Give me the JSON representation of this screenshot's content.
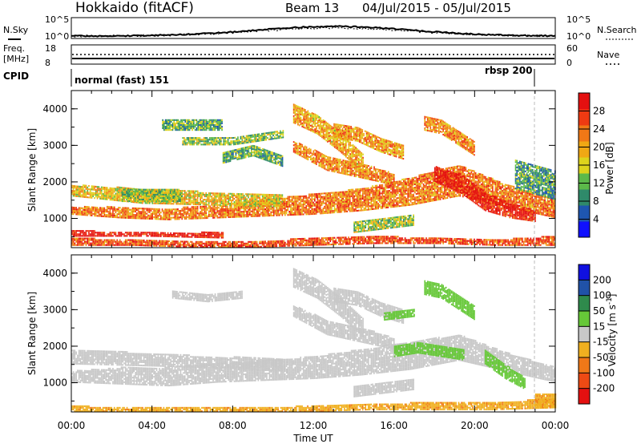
{
  "header": {
    "radar": "Hokkaido (fitACF)",
    "beam": "Beam 13",
    "date_range": "04/Jul/2015 - 05/Jul/2015"
  },
  "noise_panel": {
    "left_label": "N.Sky",
    "left_ticks": [
      "10^5",
      "10^0"
    ],
    "right_label": "N.Search",
    "right_ticks": [
      "10^5",
      "10^0"
    ]
  },
  "freq_panel": {
    "left_label": "Freq.",
    "left_unit": "[MHz]",
    "left_ticks": [
      "18",
      "8"
    ],
    "right_label": "Nave",
    "right_ticks": [
      "60",
      "0"
    ]
  },
  "cpid_panel": {
    "label": "CPID",
    "segments": [
      "normal (fast) 151",
      "rbsp 200"
    ]
  },
  "chart_data": [
    {
      "type": "heatmap",
      "name": "power",
      "xlabel": "",
      "ylabel": "Slant Range [km]",
      "x_ticks": [
        "00:00",
        "04:00",
        "08:00",
        "12:00",
        "16:00",
        "20:00",
        "00:00"
      ],
      "y_ticks": [
        "1000",
        "2000",
        "3000",
        "4000"
      ],
      "xlim_hours": [
        0,
        24
      ],
      "ylim_km": [
        200,
        4500
      ],
      "colorbar": {
        "label": "Power [dB]",
        "ticks": [
          "4",
          "8",
          "12",
          "16",
          "20",
          "24",
          "28"
        ],
        "range": [
          0,
          32
        ],
        "colors": [
          "#1010ff",
          "#1e56b0",
          "#2f8a6a",
          "#5cb94a",
          "#ddd31c",
          "#f0a814",
          "#f07816",
          "#ee3a12",
          "#e41010"
        ]
      },
      "features": [
        {
          "t0": 0.0,
          "t1": 24.0,
          "r": [
            [
              1100,
              1300
            ],
            [
              1000,
              1300
            ],
            [
              950,
              1250
            ],
            [
              1000,
              1350
            ],
            [
              1050,
              1500
            ],
            [
              1100,
              1650
            ],
            [
              1200,
              1800
            ],
            [
              1350,
              2100
            ],
            [
              1600,
              2450
            ],
            [
              1300,
              1900
            ],
            [
              1000,
              1500
            ]
          ],
          "value": 23
        },
        {
          "t0": 0.0,
          "t1": 10.5,
          "r": [
            [
              1600,
              1900
            ],
            [
              1400,
              1800
            ],
            [
              1350,
              1700
            ],
            [
              1300,
              1650
            ]
          ],
          "value": 18
        },
        {
          "t0": 2.5,
          "t1": 5.5,
          "r": [
            [
              1450,
              1800
            ],
            [
              1450,
              1800
            ]
          ],
          "value": 14
        },
        {
          "t0": 0.0,
          "t1": 24.0,
          "r": [
            [
              250,
              450
            ],
            [
              250,
              400
            ],
            [
              200,
              350
            ],
            [
              200,
              350
            ],
            [
              250,
              450
            ],
            [
              300,
              500
            ],
            [
              300,
              450
            ],
            [
              250,
              400
            ],
            [
              250,
              500
            ]
          ],
          "value": 26
        },
        {
          "t0": 0.0,
          "t1": 7.5,
          "r": [
            [
              500,
              650
            ],
            [
              500,
              600
            ],
            [
              450,
              600
            ]
          ],
          "value": 30
        },
        {
          "t0": 11.0,
          "t1": 16.0,
          "r": [
            [
              2800,
              3100
            ],
            [
              2300,
              2700
            ],
            [
              2100,
              2500
            ],
            [
              1900,
              2200
            ]
          ],
          "value": 22
        },
        {
          "t0": 13.0,
          "t1": 16.5,
          "r": [
            [
              3200,
              3600
            ],
            [
              3100,
              3500
            ],
            [
              2800,
              3200
            ],
            [
              2600,
              3000
            ]
          ],
          "value": 21
        },
        {
          "t0": 11.0,
          "t1": 14.5,
          "r": [
            [
              3600,
              4100
            ],
            [
              3300,
              3800
            ],
            [
              2800,
              3300
            ],
            [
              2200,
              2700
            ]
          ],
          "value": 20
        },
        {
          "t0": 17.5,
          "t1": 20.0,
          "r": [
            [
              3400,
              3800
            ],
            [
              3300,
              3700
            ],
            [
              3000,
              3400
            ],
            [
              2700,
              3100
            ]
          ],
          "value": 22
        },
        {
          "t0": 18.0,
          "t1": 23.0,
          "r": [
            [
              2000,
              2400
            ],
            [
              1700,
              2200
            ],
            [
              1200,
              1700
            ],
            [
              1000,
              1400
            ],
            [
              900,
              1200
            ]
          ],
          "value": 30
        },
        {
          "t0": 5.5,
          "t1": 10.5,
          "r": [
            [
              3000,
              3200
            ],
            [
              3000,
              3200
            ],
            [
              3200,
              3400
            ]
          ],
          "value": 13
        },
        {
          "t0": 7.5,
          "t1": 10.5,
          "r": [
            [
              2500,
              2800
            ],
            [
              2700,
              3000
            ],
            [
              2400,
              2700
            ]
          ],
          "value": 12
        },
        {
          "t0": 14.0,
          "t1": 17.0,
          "r": [
            [
              600,
              900
            ],
            [
              700,
              1000
            ],
            [
              800,
              1100
            ]
          ],
          "value": 14
        },
        {
          "t0": 4.5,
          "t1": 7.5,
          "r": [
            [
              3400,
              3700
            ],
            [
              3400,
              3700
            ]
          ],
          "value": 12
        },
        {
          "t0": 22.0,
          "t1": 24.0,
          "r": [
            [
              1800,
              2600
            ],
            [
              1500,
              2300
            ]
          ],
          "value": 10
        }
      ]
    },
    {
      "type": "heatmap",
      "name": "velocity",
      "xlabel": "Time UT",
      "ylabel": "Slant Range [km]",
      "x_ticks": [
        "00:00",
        "04:00",
        "08:00",
        "12:00",
        "16:00",
        "20:00",
        "00:00"
      ],
      "y_ticks": [
        "1000",
        "2000",
        "3000",
        "4000"
      ],
      "xlim_hours": [
        0,
        24
      ],
      "ylim_km": [
        200,
        4500
      ],
      "colorbar": {
        "label": "Velocity [m s",
        "label_superscript": "-1",
        "label_suffix": "]",
        "ticks": [
          "200",
          "100",
          "50",
          "15",
          "-15",
          "-50",
          "-100",
          "-200"
        ],
        "colors": [
          "#1010e0",
          "#2052a8",
          "#2f8a4c",
          "#66c838",
          "#c8c8c8",
          "#f0b020",
          "#f07818",
          "#ee4a14",
          "#e41010"
        ]
      },
      "features": [
        {
          "t0": 0.0,
          "t1": 24.0,
          "r": [
            [
              1000,
              1300
            ],
            [
              950,
              1400
            ],
            [
              900,
              1400
            ],
            [
              1000,
              1500
            ],
            [
              1050,
              1600
            ],
            [
              1100,
              1700
            ],
            [
              1200,
              1900
            ],
            [
              1350,
              2100
            ],
            [
              1600,
              2300
            ],
            [
              1300,
              1800
            ],
            [
              1000,
              1400
            ]
          ],
          "value": 0
        },
        {
          "t0": 0.0,
          "t1": 10.5,
          "r": [
            [
              1500,
              1900
            ],
            [
              1450,
              1800
            ],
            [
              1400,
              1700
            ],
            [
              1300,
              1650
            ]
          ],
          "value": 0
        },
        {
          "t0": 0.0,
          "t1": 24.0,
          "r": [
            [
              200,
              350
            ],
            [
              200,
              300
            ],
            [
              200,
              300
            ],
            [
              200,
              300
            ],
            [
              200,
              350
            ],
            [
              250,
              400
            ],
            [
              250,
              450
            ],
            [
              250,
              450
            ],
            [
              300,
              550
            ]
          ],
          "value": -40
        },
        {
          "t0": 11.0,
          "t1": 16.0,
          "r": [
            [
              2800,
              3100
            ],
            [
              2300,
              2700
            ],
            [
              2100,
              2500
            ],
            [
              1900,
              2200
            ]
          ],
          "value": 0
        },
        {
          "t0": 13.0,
          "t1": 16.5,
          "r": [
            [
              3200,
              3600
            ],
            [
              3100,
              3500
            ],
            [
              2800,
              3200
            ],
            [
              2600,
              3000
            ]
          ],
          "value": 0
        },
        {
          "t0": 11.0,
          "t1": 14.5,
          "r": [
            [
              3600,
              4100
            ],
            [
              3300,
              3800
            ],
            [
              2800,
              3300
            ],
            [
              2200,
              2700
            ]
          ],
          "value": 0
        },
        {
          "t0": 17.5,
          "t1": 20.0,
          "r": [
            [
              3400,
              3800
            ],
            [
              3300,
              3700
            ],
            [
              3000,
              3400
            ],
            [
              2700,
              3100
            ]
          ],
          "value": 30
        },
        {
          "t0": 16.0,
          "t1": 19.5,
          "r": [
            [
              1700,
              2000
            ],
            [
              1800,
              2100
            ],
            [
              1700,
              2000
            ],
            [
              1600,
              1900
            ]
          ],
          "value": 30
        },
        {
          "t0": 20.5,
          "t1": 22.5,
          "r": [
            [
              1500,
              1900
            ],
            [
              1100,
              1500
            ],
            [
              800,
              1100
            ]
          ],
          "value": 30
        },
        {
          "t0": 5.0,
          "t1": 8.5,
          "r": [
            [
              3300,
              3500
            ],
            [
              3200,
              3400
            ],
            [
              3300,
              3500
            ]
          ],
          "value": 0
        },
        {
          "t0": 14.0,
          "t1": 17.0,
          "r": [
            [
              600,
              900
            ],
            [
              700,
              1000
            ],
            [
              800,
              1100
            ]
          ],
          "value": 0
        },
        {
          "t0": 15.5,
          "t1": 17.0,
          "r": [
            [
              2700,
              2900
            ],
            [
              2800,
              3000
            ]
          ],
          "value": 30
        },
        {
          "t0": 23.0,
          "t1": 24.0,
          "r": [
            [
              300,
              700
            ],
            [
              300,
              700
            ]
          ],
          "value": -40
        }
      ]
    }
  ]
}
